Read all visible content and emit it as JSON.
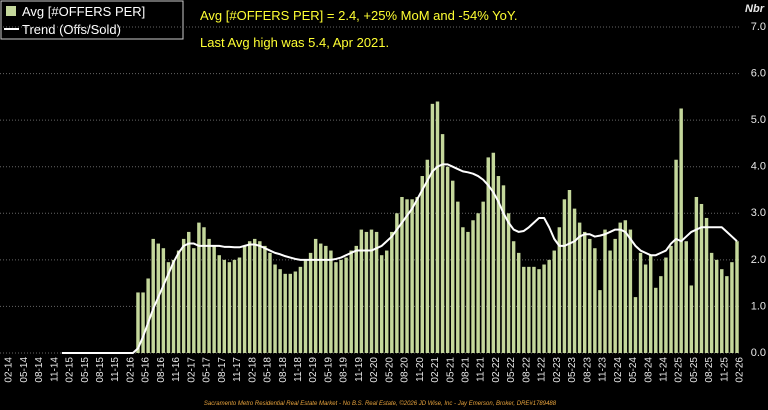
{
  "chart_data": {
    "type": "bar-line",
    "annotations": [
      "Avg [#OFFERS PER] = 2.4, +25% MoM and -54% YoY.",
      "Last Avg high was 5.4, Apr 2021."
    ],
    "y_axis_label": "Nbr",
    "footer": "Sacramento Metro Residential Real Estate Market - No B.S. Real Estate, ©2026 JD Wise, Inc - Jay Emerson, Broker, DRE#1789488",
    "categories": [
      "02-14",
      null,
      null,
      "05-14",
      null,
      null,
      "08-14",
      null,
      null,
      "11-14",
      null,
      null,
      "02-15",
      null,
      null,
      "05-15",
      null,
      null,
      "08-15",
      null,
      null,
      "11-15",
      null,
      null,
      "02-16",
      null,
      null,
      "05-16",
      null,
      null,
      "08-16",
      null,
      null,
      "11-16",
      null,
      null,
      "02-17",
      null,
      null,
      "05-17",
      null,
      null,
      "08-17",
      null,
      null,
      "11-17",
      null,
      null,
      "02-18",
      null,
      null,
      "05-18",
      null,
      null,
      "08-18",
      null,
      null,
      "11-18",
      null,
      null,
      "02-19",
      null,
      null,
      "05-19",
      null,
      null,
      "08-19",
      null,
      null,
      "11-19",
      null,
      null,
      "02-20",
      null,
      null,
      "05-20",
      null,
      null,
      "08-20",
      null,
      null,
      "11-20",
      null,
      null,
      "02-21",
      null,
      null,
      "05-21",
      null,
      null,
      "08-21",
      null,
      null,
      "11-21",
      null,
      null,
      "02-22",
      null,
      null,
      "05-22",
      null,
      null,
      "08-22",
      null,
      null,
      "11-22",
      null,
      null,
      "02-23",
      null,
      null,
      "05-23",
      null,
      null,
      "08-23",
      null,
      null,
      "11-23",
      null,
      null,
      "02-24",
      null,
      null,
      "05-24",
      null,
      null,
      "08-24",
      null,
      null,
      "11-24",
      null,
      null,
      "02-25",
      null,
      null,
      "05-25",
      null,
      null,
      "08-25",
      null,
      null,
      "11-25",
      null,
      null,
      "02-26"
    ],
    "series": [
      {
        "name": "Avg [#OFFERS PER]",
        "type": "bar",
        "color": "#c4d79b",
        "values": [
          0,
          0,
          0,
          0,
          0,
          0,
          0,
          0,
          0,
          0,
          0,
          0,
          0,
          0,
          0,
          0,
          0,
          0,
          0,
          0,
          0,
          0,
          0,
          0,
          0,
          0,
          1.3,
          1.3,
          1.6,
          2.45,
          2.35,
          2.25,
          1.95,
          2.0,
          2.2,
          2.45,
          2.6,
          2.25,
          2.8,
          2.7,
          2.45,
          2.3,
          2.1,
          2.0,
          1.95,
          2.0,
          2.05,
          2.3,
          2.4,
          2.45,
          2.4,
          2.3,
          2.15,
          1.9,
          1.8,
          1.7,
          1.7,
          1.75,
          1.85,
          2.0,
          2.15,
          2.45,
          2.35,
          2.3,
          2.2,
          1.95,
          2.0,
          2.05,
          2.2,
          2.3,
          2.65,
          2.6,
          2.65,
          2.6,
          2.1,
          2.2,
          2.6,
          3.0,
          3.35,
          3.3,
          3.3,
          3.35,
          3.8,
          4.15,
          5.35,
          5.4,
          4.7,
          4.0,
          3.7,
          3.25,
          2.7,
          2.6,
          2.85,
          3.0,
          3.25,
          4.2,
          4.3,
          3.8,
          3.6,
          3.0,
          2.4,
          2.15,
          1.85,
          1.85,
          1.85,
          1.8,
          1.9,
          2.0,
          2.2,
          2.7,
          3.3,
          3.5,
          3.1,
          2.8,
          2.6,
          2.45,
          2.25,
          1.35,
          2.65,
          2.2,
          2.45,
          2.8,
          2.85,
          2.65,
          1.2,
          2.15,
          1.9,
          2.1,
          1.4,
          1.65,
          2.05,
          2.3,
          4.15,
          5.25,
          2.4,
          1.45,
          3.35,
          3.2,
          2.9,
          2.15,
          2.0,
          1.8,
          1.65,
          1.95,
          2.4
        ]
      },
      {
        "name": "Trend (Offs/Sold)",
        "type": "line",
        "color": "#ffffff",
        "values": [
          null,
          null,
          null,
          null,
          null,
          null,
          null,
          null,
          null,
          null,
          null,
          0,
          0,
          0,
          0,
          0,
          0,
          0,
          0,
          0,
          0,
          0,
          0,
          0,
          0,
          0,
          0.1,
          0.35,
          0.65,
          0.95,
          1.2,
          1.45,
          1.7,
          1.95,
          2.15,
          2.3,
          2.35,
          2.35,
          2.3,
          2.3,
          2.3,
          2.3,
          2.3,
          2.28,
          2.28,
          2.27,
          2.27,
          2.3,
          2.33,
          2.33,
          2.3,
          2.25,
          2.2,
          2.15,
          2.12,
          2.08,
          2.05,
          2.02,
          2.0,
          2.0,
          2.0,
          2.0,
          2.0,
          2.0,
          2.0,
          2.02,
          2.05,
          2.1,
          2.15,
          2.2,
          2.2,
          2.2,
          2.2,
          2.25,
          2.3,
          2.4,
          2.5,
          2.65,
          2.8,
          2.95,
          3.1,
          3.3,
          3.5,
          3.7,
          3.9,
          4.0,
          4.05,
          4.05,
          4.0,
          3.95,
          3.9,
          3.88,
          3.85,
          3.8,
          3.72,
          3.6,
          3.45,
          3.25,
          3.0,
          2.8,
          2.65,
          2.6,
          2.62,
          2.7,
          2.8,
          2.9,
          2.9,
          2.7,
          2.45,
          2.3,
          2.3,
          2.35,
          2.4,
          2.5,
          2.55,
          2.55,
          2.5,
          2.52,
          2.55,
          2.6,
          2.65,
          2.65,
          2.6,
          2.45,
          2.3,
          2.2,
          2.15,
          2.1,
          2.1,
          2.15,
          2.2,
          2.35,
          2.45,
          2.4,
          2.5,
          2.6,
          2.65,
          2.7,
          2.7,
          2.7,
          2.7,
          2.7,
          2.6,
          2.5,
          2.4
        ]
      }
    ],
    "ylim": [
      0,
      7
    ],
    "yticks": [
      {
        "value": 0,
        "label": "0.0"
      },
      {
        "value": 1,
        "label": "1.0"
      },
      {
        "value": 2,
        "label": "2.0"
      },
      {
        "value": 3,
        "label": "3.0"
      },
      {
        "value": 4,
        "label": "4.0"
      },
      {
        "value": 5,
        "label": "5.0"
      },
      {
        "value": 6,
        "label": "6.0"
      },
      {
        "value": 7,
        "label": "7.0"
      }
    ],
    "grid": true
  }
}
